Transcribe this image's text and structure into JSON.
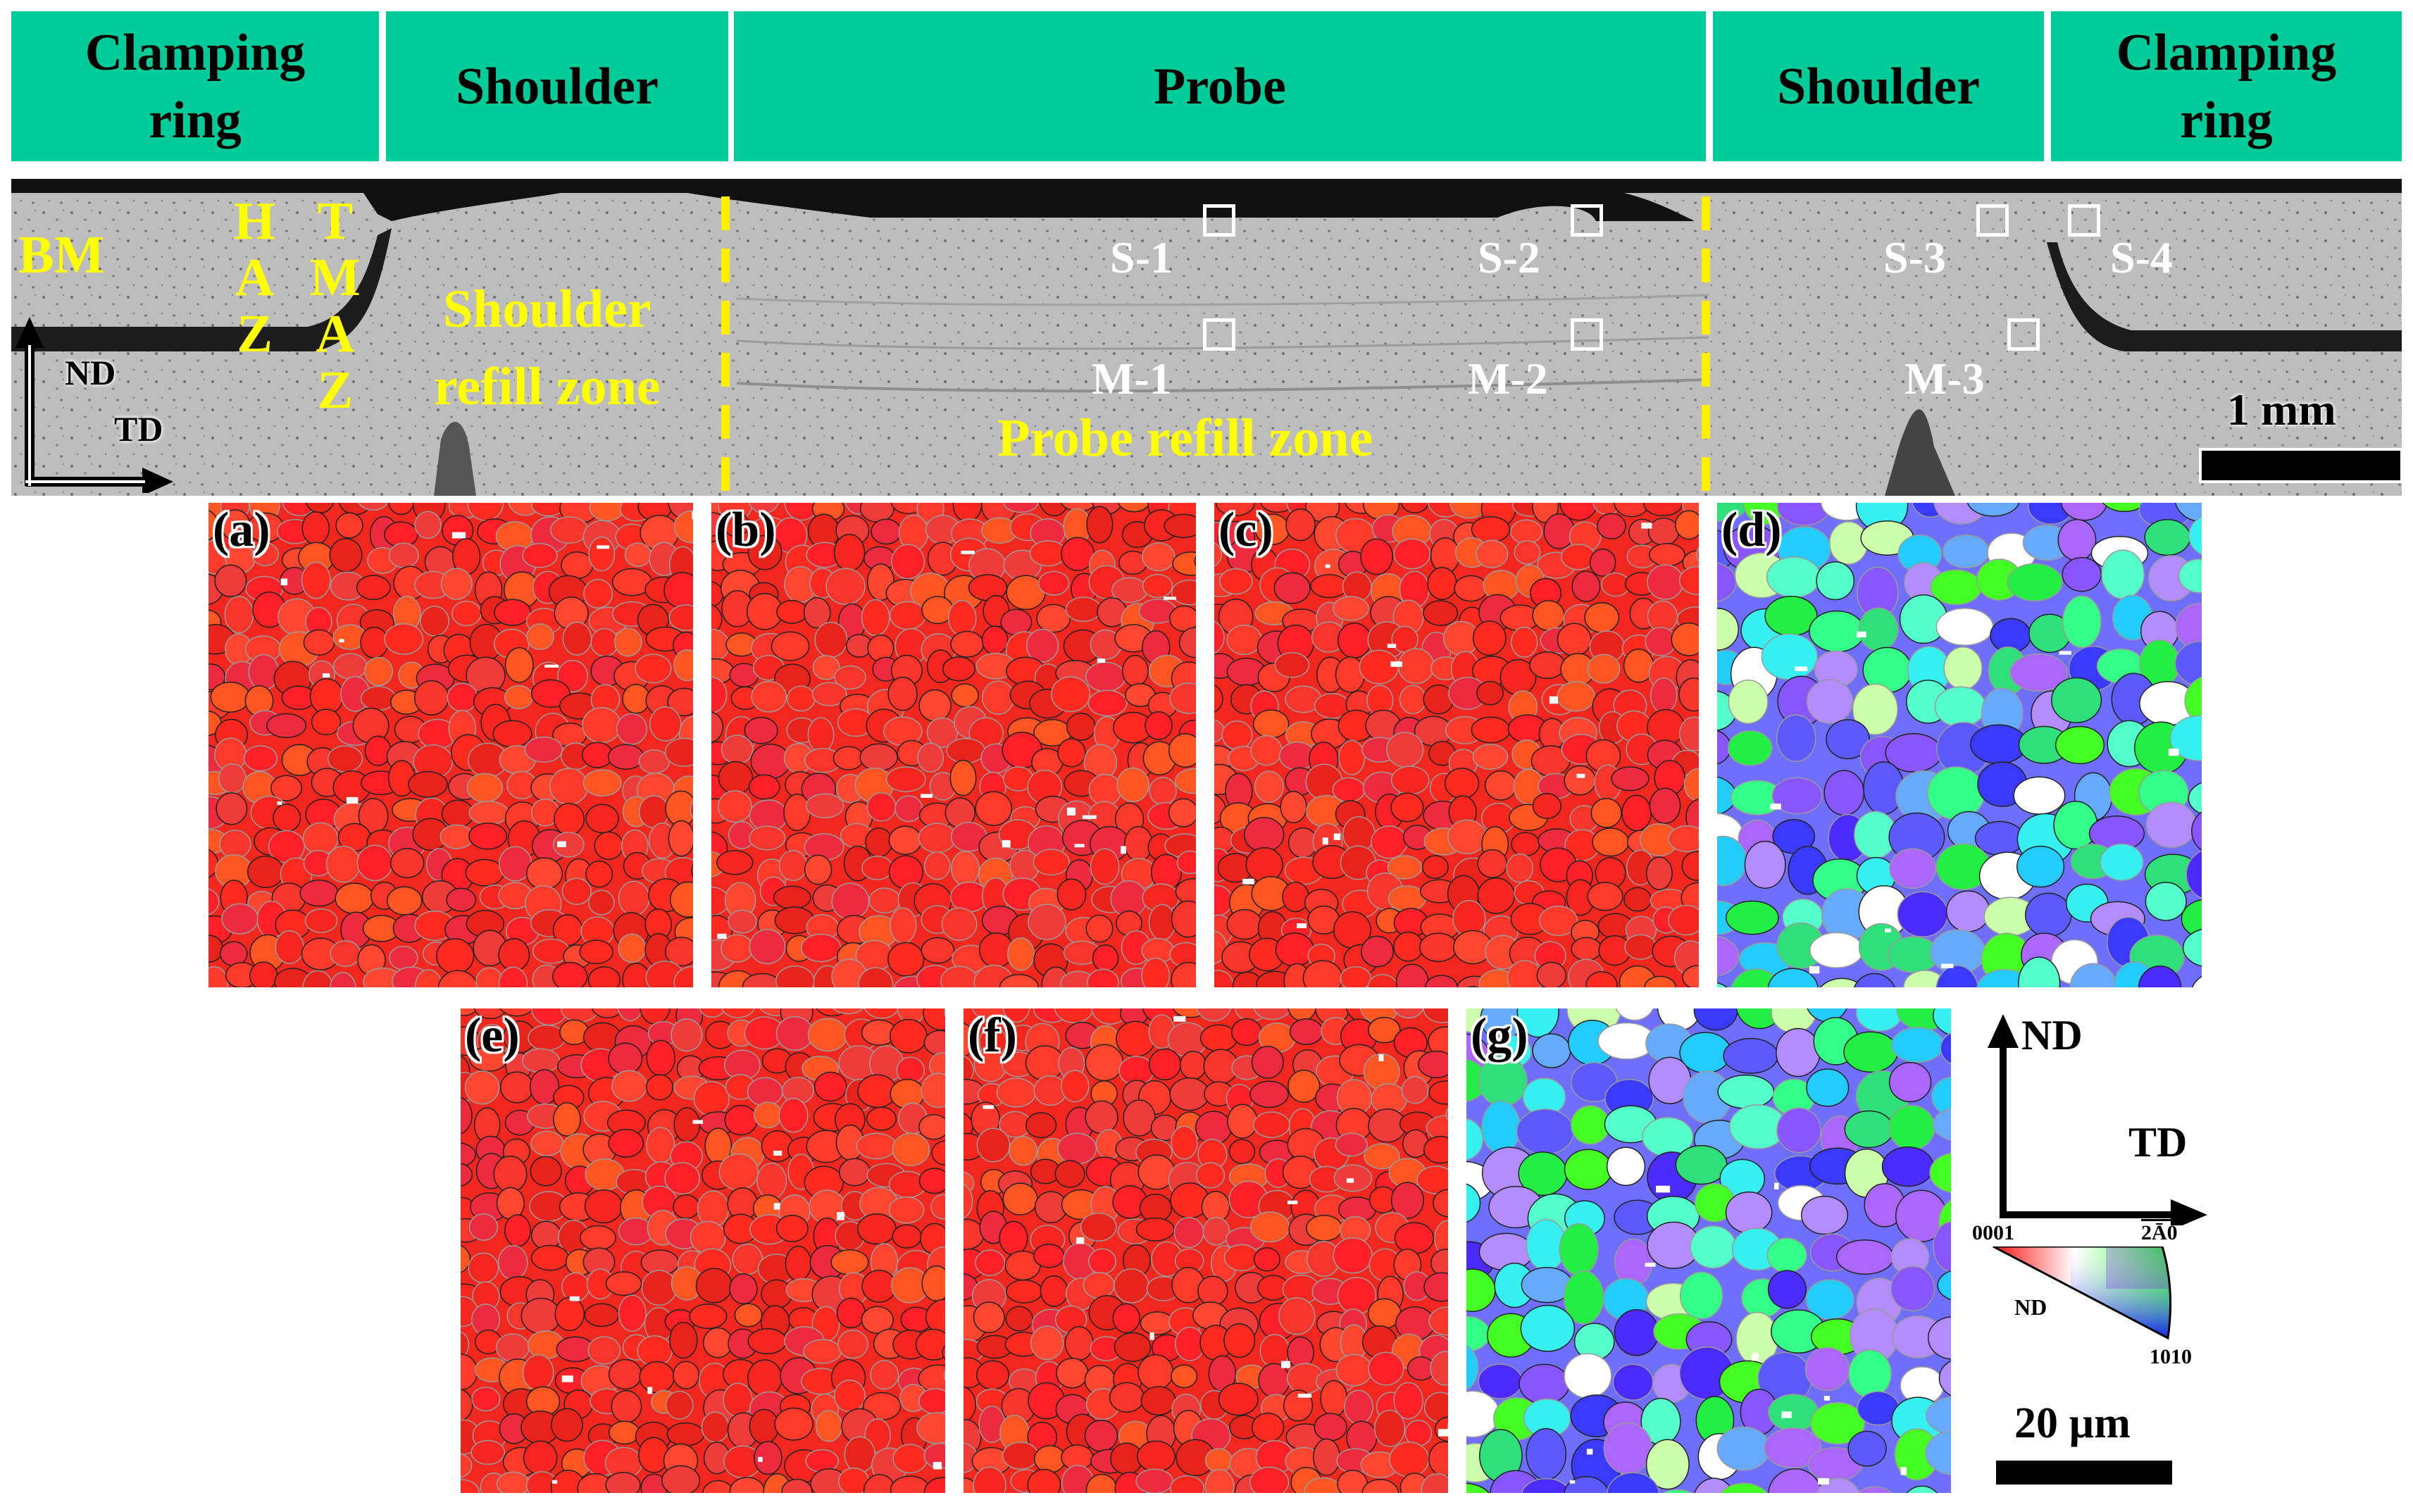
{
  "header": {
    "sections": [
      {
        "label": "Clamping\nring"
      },
      {
        "label": "Shoulder"
      },
      {
        "label": "Probe"
      },
      {
        "label": "Shoulder"
      },
      {
        "label": "Clamping\nring"
      }
    ]
  },
  "macrograph": {
    "zone_labels": {
      "bm": "BM",
      "haz": "H\nA\nZ",
      "tmaz": "T\nM\nA\nZ",
      "shoulder_refill": "Shoulder\nrefill zone",
      "probe_refill": "Probe refill zone"
    },
    "sample_points": [
      {
        "label": "S-1"
      },
      {
        "label": "S-2"
      },
      {
        "label": "S-3"
      },
      {
        "label": "S-4"
      },
      {
        "label": "M-1"
      },
      {
        "label": "M-2"
      },
      {
        "label": "M-3"
      }
    ],
    "axes": {
      "nd": "ND",
      "td": "TD"
    },
    "scale_bar": "1 mm"
  },
  "ebsd_panels": [
    {
      "label": "(a)",
      "texture": "basal"
    },
    {
      "label": "(b)",
      "texture": "basal"
    },
    {
      "label": "(c)",
      "texture": "basal"
    },
    {
      "label": "(d)",
      "texture": "random"
    },
    {
      "label": "(e)",
      "texture": "basal"
    },
    {
      "label": "(f)",
      "texture": "basal"
    },
    {
      "label": "(g)",
      "texture": "random"
    }
  ],
  "legend": {
    "axes": {
      "nd": "ND",
      "td": "TD"
    },
    "ipf": {
      "corner_0001": "0001",
      "corner_2110": "2Ā0",
      "corner_1010": "1010",
      "axis": "ND"
    },
    "scale_bar": "20 µm"
  },
  "colors": {
    "header_bg": "#00cc99",
    "zone_label": "#ffff00",
    "basal_red": "#f22a2a",
    "boundary_gray": "#9a9a9a"
  }
}
